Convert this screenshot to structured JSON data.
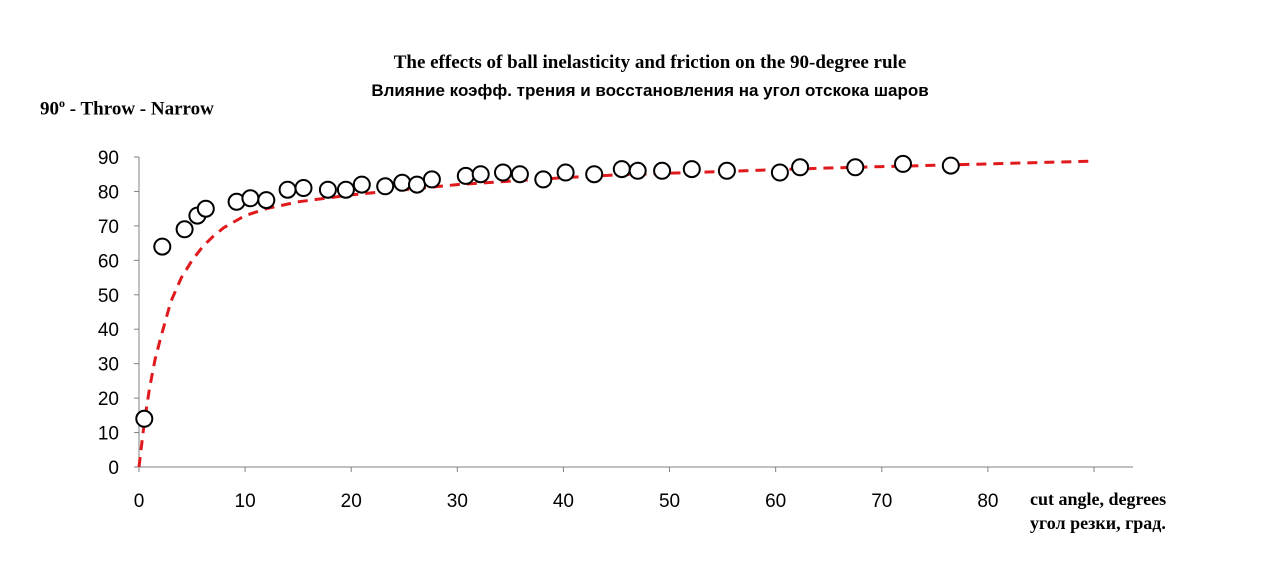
{
  "chart_data": {
    "type": "scatter",
    "title": "The effects of ball inelasticity and friction on the 90-degree rule",
    "subtitle": "Влияние коэфф. трения и восстановления на угол отскока шаров",
    "ylabel": {
      "base": "90",
      "sup": "o",
      "rest": " - Throw - Narrow"
    },
    "xlabel": [
      "cut angle, degrees",
      "угол резки, град."
    ],
    "xlim": [
      0,
      90
    ],
    "ylim": [
      0,
      90
    ],
    "xticks": [
      0,
      10,
      20,
      30,
      40,
      50,
      60,
      70,
      80
    ],
    "yticks": [
      0,
      10,
      20,
      30,
      40,
      50,
      60,
      70,
      80,
      90
    ],
    "grid": false,
    "series": [
      {
        "style": "open-circle-markers",
        "color": "#000000",
        "x": [
          0.5,
          2.2,
          4.3,
          5.5,
          6.3,
          9.2,
          10.5,
          12.0,
          14.0,
          15.5,
          17.8,
          19.5,
          21.0,
          23.2,
          24.8,
          26.2,
          27.6,
          30.8,
          32.2,
          34.3,
          35.9,
          38.1,
          40.2,
          42.9,
          45.5,
          47.0,
          49.3,
          52.1,
          55.4,
          60.4,
          62.3,
          67.5,
          72.0,
          76.5
        ],
        "y": [
          14,
          64,
          69,
          73,
          75,
          77,
          78,
          77.5,
          80.5,
          81,
          80.5,
          80.5,
          82,
          81.5,
          82.5,
          82,
          83.5,
          84.5,
          85,
          85.5,
          85,
          83.5,
          85.5,
          85,
          86.5,
          86,
          86,
          86.5,
          86,
          85.5,
          87,
          87,
          88,
          87.5
        ]
      },
      {
        "style": "dashed-line",
        "color": "#e0191c",
        "x": [
          0,
          0.5,
          1,
          1.5,
          2,
          3,
          4,
          5,
          6,
          7,
          8,
          10,
          12,
          15,
          20,
          25,
          30,
          35,
          40,
          45,
          50,
          55,
          60,
          65,
          70,
          75,
          80,
          85,
          90
        ],
        "y": [
          0,
          13,
          23,
          31,
          37,
          48,
          55,
          60,
          64,
          67,
          69.5,
          73,
          75,
          77,
          79,
          80.5,
          82,
          83,
          84,
          84.8,
          85.3,
          85.8,
          86.3,
          86.8,
          87.2,
          87.6,
          88,
          88.4,
          88.8
        ]
      }
    ]
  }
}
